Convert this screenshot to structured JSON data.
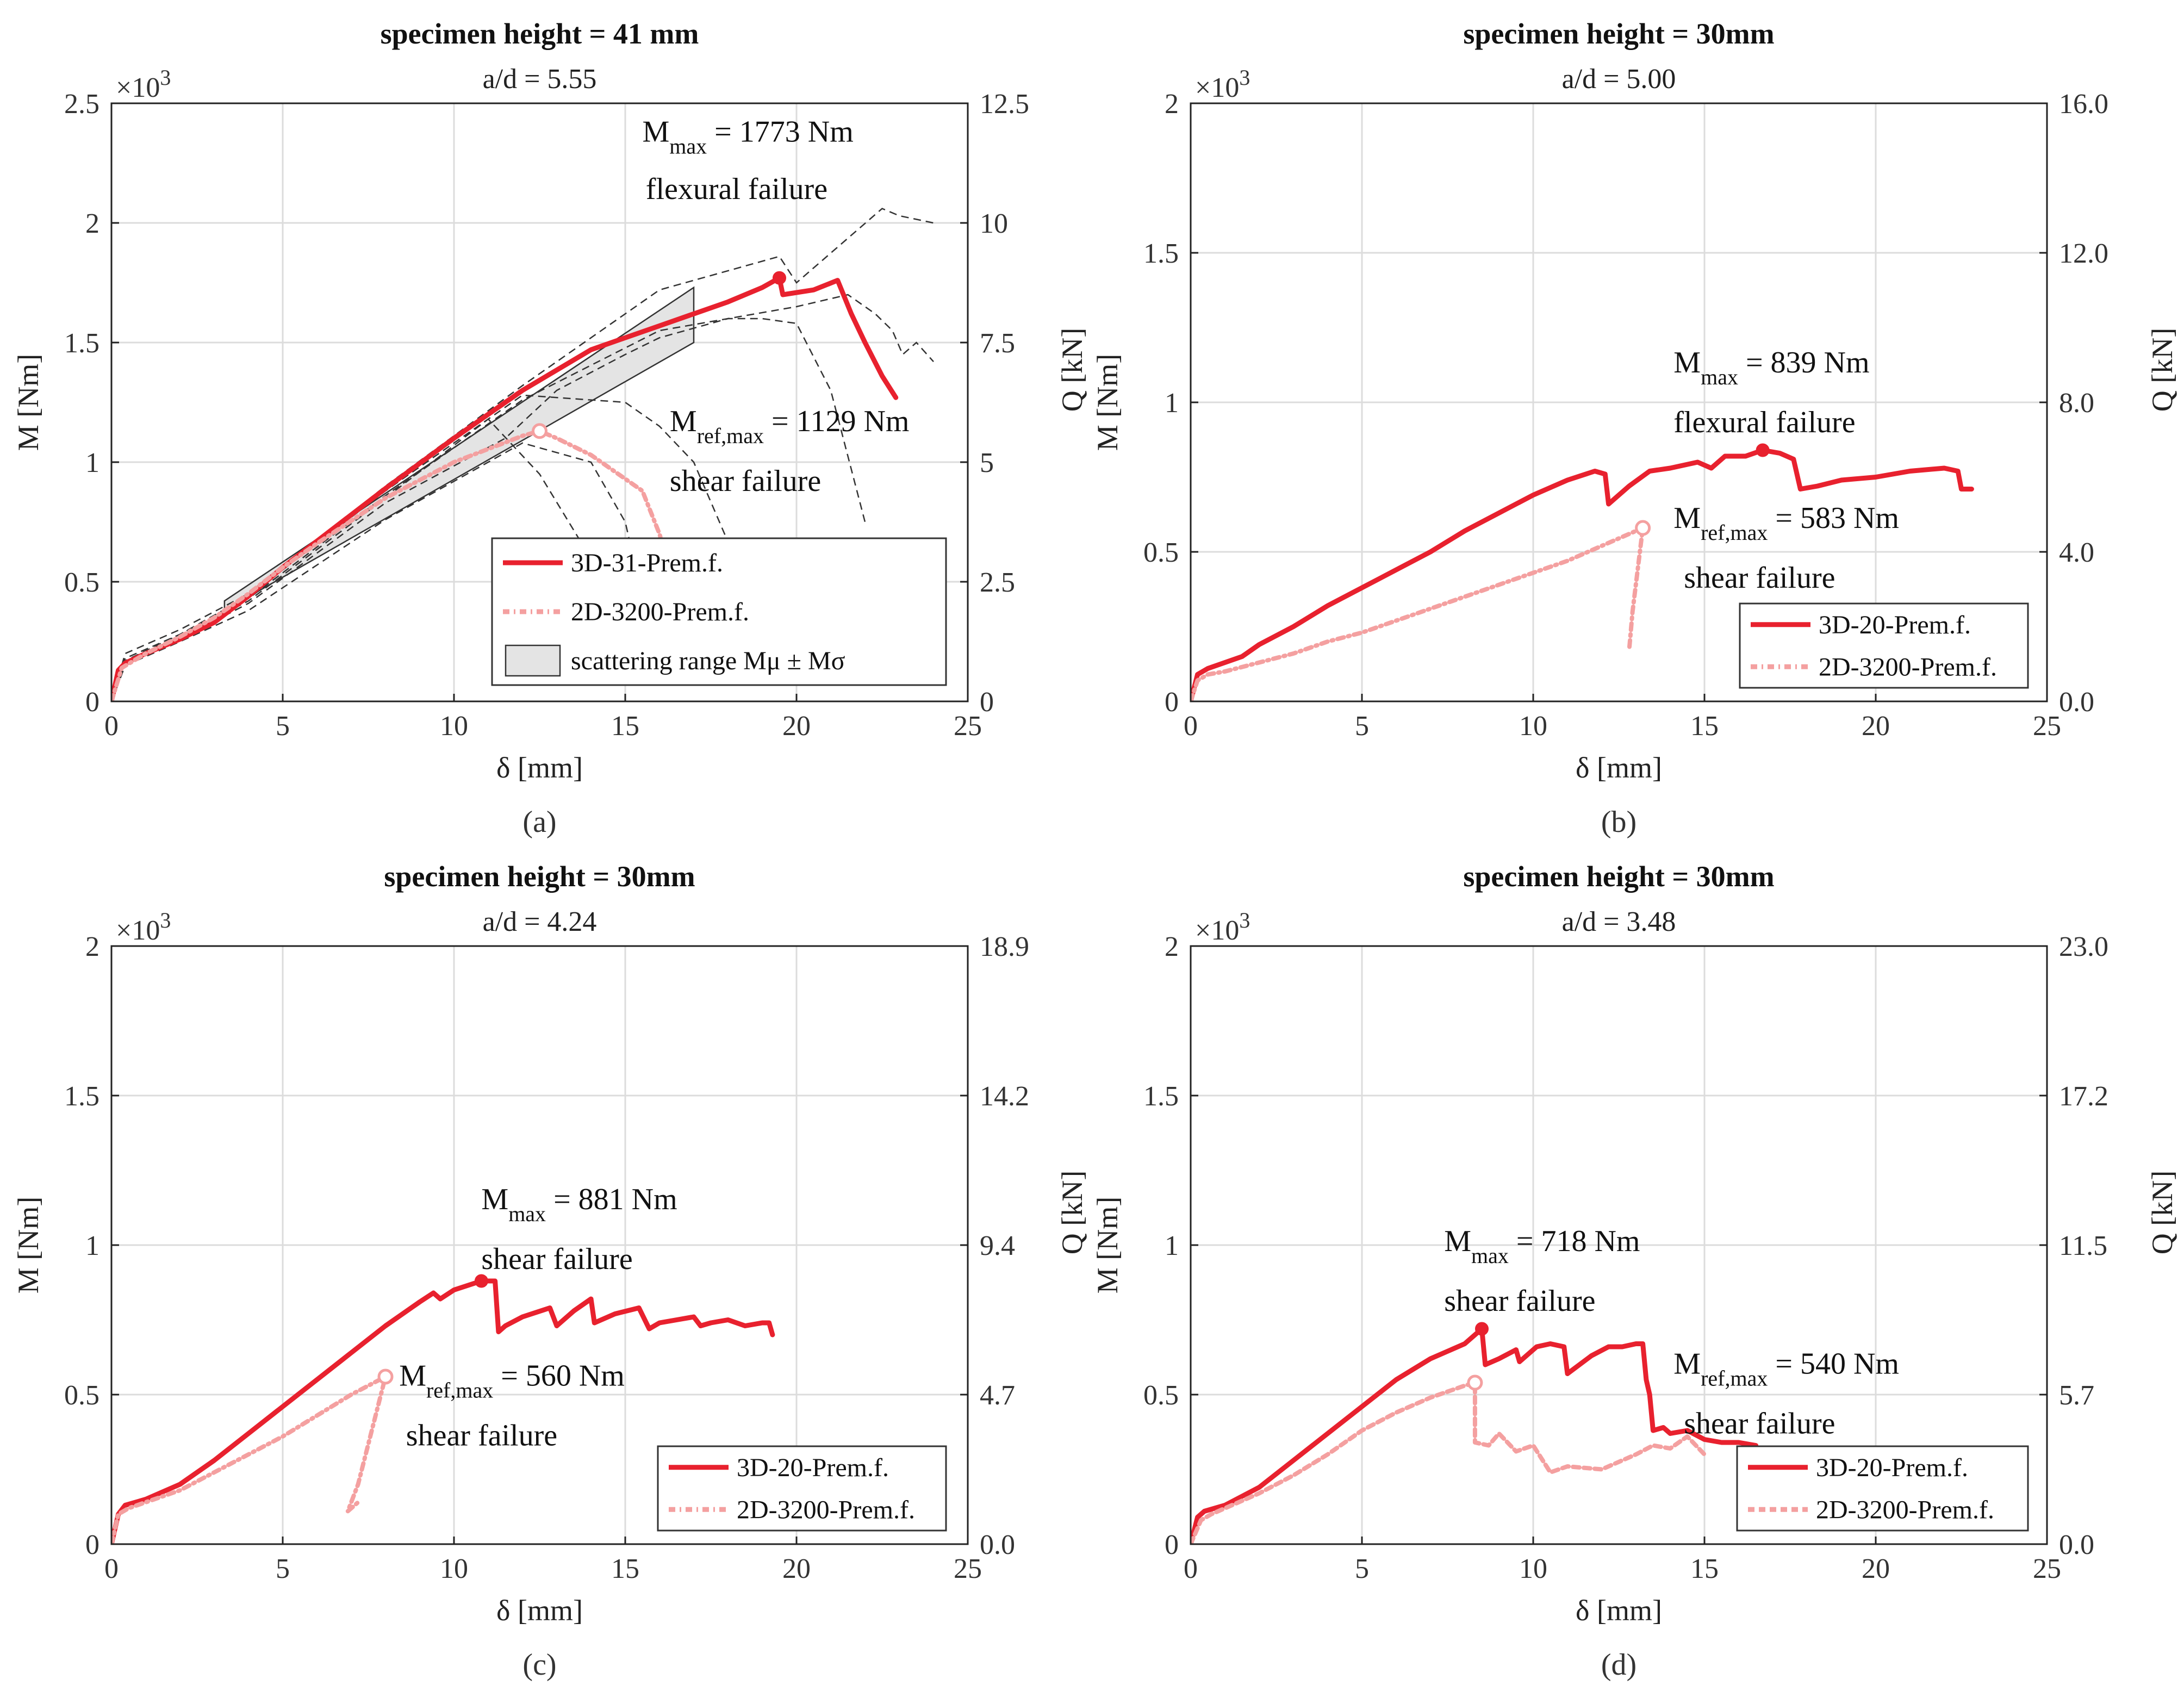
{
  "chart_data": [
    {
      "panel": "(a)",
      "type": "line",
      "title": "specimen height = 41 mm",
      "subtitle": "a/d = 5.55",
      "xlabel": "δ [mm]",
      "ylabel": "M [Nm]",
      "y2label": "",
      "multiplier": "×10",
      "multiplier_exp": "3",
      "xlim": [
        0,
        25
      ],
      "ylim": [
        0,
        2.5
      ],
      "xticks": [
        "0",
        "5",
        "10",
        "15",
        "20",
        "25"
      ],
      "yticks": [
        "0",
        "0.5",
        "1",
        "1.5",
        "2",
        "2.5"
      ],
      "y2ticks": [
        "0",
        "2.5",
        "5",
        "7.5",
        "10",
        "12.5"
      ],
      "legend_position": "bottom-right",
      "annotations": [
        {
          "main": "M",
          "sub": "max",
          "rest": " = 1773 Nm",
          "x": 15.5,
          "y": 2.34
        },
        {
          "main": "flexural failure",
          "x": 15.6,
          "y": 2.1
        },
        {
          "main": "M",
          "sub": "ref,max",
          "rest": " = 1129 Nm",
          "x": 16.3,
          "y": 1.13
        },
        {
          "main": "shear failure",
          "x": 16.3,
          "y": 0.88
        }
      ],
      "series": [
        {
          "name": "3D-31-Prem.f.",
          "color": "#e8212e",
          "dash": "solid",
          "x": [
            0,
            0.2,
            0.4,
            1,
            2,
            3,
            4,
            5,
            6,
            8,
            10,
            12,
            14,
            16,
            17,
            18,
            19,
            19.5,
            19.6,
            20.5,
            21.2,
            21.6,
            22,
            22.5,
            22.9
          ],
          "y": [
            0,
            0.13,
            0.16,
            0.2,
            0.26,
            0.33,
            0.44,
            0.56,
            0.67,
            0.89,
            1.1,
            1.3,
            1.47,
            1.57,
            1.62,
            1.67,
            1.73,
            1.77,
            1.7,
            1.72,
            1.76,
            1.62,
            1.5,
            1.36,
            1.27
          ]
        },
        {
          "name": "2D-3200-Prem.f.",
          "color": "#f4a0a0",
          "dash": "12,8,3,8",
          "x": [
            0,
            0.3,
            1,
            2,
            3,
            4,
            5,
            6,
            8,
            10,
            12,
            12.5,
            13,
            14,
            15,
            15.5,
            16,
            16.6
          ],
          "y": [
            0,
            0.14,
            0.2,
            0.27,
            0.35,
            0.45,
            0.56,
            0.66,
            0.85,
            1.0,
            1.11,
            1.13,
            1.1,
            1.03,
            0.93,
            0.88,
            0.7,
            0.4
          ]
        },
        {
          "name": "scattering range M_μ ± M_σ",
          "color": "#e4e4e4",
          "dash": "fill",
          "x": [
            3.3,
            17
          ],
          "y_upper": [
            0.42,
            1.73
          ],
          "y_lower": [
            0.38,
            1.5
          ]
        }
      ],
      "reference_curves": [
        {
          "x": [
            0,
            0.4,
            2,
            4,
            8,
            12,
            16,
            19.5,
            20,
            22.5,
            23,
            24
          ],
          "y": [
            0,
            0.2,
            0.3,
            0.45,
            0.9,
            1.32,
            1.72,
            1.86,
            1.75,
            2.06,
            2.03,
            2.0
          ]
        },
        {
          "x": [
            0,
            0.4,
            2,
            4,
            8,
            12,
            16,
            20,
            21.5,
            22.3,
            22.8,
            23.1,
            23.5,
            24
          ],
          "y": [
            0,
            0.18,
            0.28,
            0.43,
            0.86,
            1.26,
            1.55,
            1.65,
            1.7,
            1.62,
            1.55,
            1.45,
            1.5,
            1.42
          ]
        },
        {
          "x": [
            0,
            0.4,
            2,
            4,
            8,
            11.5,
            13,
            15,
            16,
            18,
            19,
            20,
            21,
            22
          ],
          "y": [
            0,
            0.16,
            0.26,
            0.41,
            0.83,
            1.1,
            1.3,
            1.45,
            1.52,
            1.6,
            1.6,
            1.58,
            1.3,
            0.75
          ]
        },
        {
          "x": [
            0,
            0.4,
            2,
            4,
            8,
            12,
            14,
            15,
            15.4
          ],
          "y": [
            0,
            0.15,
            0.25,
            0.38,
            0.76,
            1.08,
            1.0,
            0.75,
            0.5
          ]
        },
        {
          "x": [
            0,
            0.4,
            2,
            4,
            8,
            11,
            12.5,
            14.2,
            15.3
          ],
          "y": [
            0,
            0.16,
            0.27,
            0.42,
            0.85,
            1.18,
            0.95,
            0.55,
            0.4
          ]
        },
        {
          "x": [
            0,
            0.4,
            2,
            4,
            8,
            12,
            15,
            16,
            17,
            18.5
          ],
          "y": [
            0,
            0.17,
            0.28,
            0.44,
            0.88,
            1.28,
            1.25,
            1.15,
            1.0,
            0.5
          ]
        }
      ]
    },
    {
      "panel": "(b)",
      "type": "line",
      "title": "specimen height = 30mm",
      "subtitle": "a/d = 5.00",
      "xlabel": "δ [mm]",
      "ylabel": "M [Nm]",
      "y2label": "Q [kN]",
      "multiplier": "×10",
      "multiplier_exp": "3",
      "xlim": [
        0,
        25
      ],
      "ylim": [
        0,
        2
      ],
      "xticks": [
        "0",
        "5",
        "10",
        "15",
        "20",
        "25"
      ],
      "yticks": [
        "0",
        "0.5",
        "1",
        "1.5",
        "2"
      ],
      "y2ticks": [
        "0.0",
        "4.0",
        "8.0",
        "12.0",
        "16.0"
      ],
      "legend_position": "bottom-right",
      "annotations": [
        {
          "main": "M",
          "sub": "max",
          "rest": " = 839 Nm",
          "x": 14.1,
          "y": 1.1
        },
        {
          "main": "flexural failure",
          "x": 14.1,
          "y": 0.9
        },
        {
          "main": "M",
          "sub": "ref,max",
          "rest": " = 583 Nm",
          "x": 14.1,
          "y": 0.58
        },
        {
          "main": "shear failure",
          "x": 14.4,
          "y": 0.38
        }
      ],
      "series": [
        {
          "name": "3D-20-Prem.f.",
          "color": "#e8212e",
          "dash": "solid",
          "x": [
            0,
            0.2,
            0.5,
            1,
            1.5,
            2,
            3,
            4,
            5,
            6,
            7,
            8,
            9,
            10,
            11,
            11.8,
            12.1,
            12.2,
            12.8,
            13.4,
            14,
            14.8,
            15.2,
            15.6,
            16.2,
            16.7,
            17.2,
            17.6,
            17.8,
            18.3,
            19,
            20,
            21,
            22,
            22.4,
            22.5,
            22.8
          ],
          "y": [
            0,
            0.09,
            0.11,
            0.13,
            0.15,
            0.19,
            0.25,
            0.32,
            0.38,
            0.44,
            0.5,
            0.57,
            0.63,
            0.69,
            0.74,
            0.77,
            0.76,
            0.66,
            0.72,
            0.77,
            0.78,
            0.8,
            0.78,
            0.82,
            0.82,
            0.84,
            0.83,
            0.81,
            0.71,
            0.72,
            0.74,
            0.75,
            0.77,
            0.78,
            0.77,
            0.71,
            0.71
          ]
        },
        {
          "name": "2D-3200-Prem.f.",
          "color": "#f4a0a0",
          "dash": "12,8,3,8",
          "x": [
            0,
            0.2,
            0.5,
            1,
            2,
            3,
            4,
            5,
            6,
            7,
            8,
            9,
            10,
            11,
            12,
            13.2,
            12.9,
            12.8
          ],
          "y": [
            0,
            0.07,
            0.09,
            0.1,
            0.13,
            0.16,
            0.2,
            0.23,
            0.27,
            0.31,
            0.35,
            0.39,
            0.43,
            0.47,
            0.52,
            0.58,
            0.3,
            0.17
          ]
        }
      ]
    },
    {
      "panel": "(c)",
      "type": "line",
      "title": "specimen height = 30mm",
      "subtitle": "a/d = 4.24",
      "xlabel": "δ [mm]",
      "ylabel": "M [Nm]",
      "y2label": "",
      "multiplier": "×10",
      "multiplier_exp": "3",
      "xlim": [
        0,
        25
      ],
      "ylim": [
        0,
        2
      ],
      "xticks": [
        "0",
        "5",
        "10",
        "15",
        "20",
        "25"
      ],
      "yticks": [
        "0",
        "0.5",
        "1",
        "1.5",
        "2"
      ],
      "y2ticks": [
        "0.0",
        "4.7",
        "9.4",
        "14.2",
        "18.9"
      ],
      "legend_position": "bottom-right",
      "annotations": [
        {
          "main": "M",
          "sub": "max",
          "rest": " = 881 Nm",
          "x": 10.8,
          "y": 1.12
        },
        {
          "main": "shear failure",
          "x": 10.8,
          "y": 0.92
        },
        {
          "main": "M",
          "sub": "ref,max",
          "rest": " = 560 Nm",
          "x": 8.4,
          "y": 0.53
        },
        {
          "main": "shear failure",
          "x": 8.6,
          "y": 0.33
        }
      ],
      "series": [
        {
          "name": "3D-20-Prem.f.",
          "color": "#e8212e",
          "dash": "solid",
          "x": [
            0,
            0.2,
            0.4,
            1,
            2,
            3,
            4,
            5,
            6,
            7,
            8,
            9,
            9.4,
            9.6,
            10,
            10.8,
            11.2,
            11.3,
            11.5,
            12,
            12.8,
            13,
            13.5,
            14,
            14.1,
            14.7,
            15.4,
            15.7,
            16,
            16.5,
            17,
            17.2,
            17.5,
            18,
            18.5,
            19,
            19.2,
            19.3
          ],
          "y": [
            0,
            0.1,
            0.13,
            0.15,
            0.2,
            0.28,
            0.37,
            0.46,
            0.55,
            0.64,
            0.73,
            0.81,
            0.84,
            0.82,
            0.85,
            0.88,
            0.88,
            0.71,
            0.73,
            0.76,
            0.79,
            0.73,
            0.78,
            0.82,
            0.74,
            0.77,
            0.79,
            0.72,
            0.74,
            0.75,
            0.76,
            0.73,
            0.74,
            0.75,
            0.73,
            0.74,
            0.74,
            0.7
          ]
        },
        {
          "name": "2D-3200-Prem.f.",
          "color": "#f4a0a0",
          "dash": "12,8,3,8",
          "x": [
            0,
            0.2,
            0.5,
            1,
            2,
            3,
            4,
            5,
            6,
            7,
            8,
            7.2,
            6.9,
            7.2
          ],
          "y": [
            0,
            0.1,
            0.12,
            0.14,
            0.18,
            0.24,
            0.3,
            0.36,
            0.43,
            0.5,
            0.56,
            0.2,
            0.11,
            0.14
          ]
        }
      ]
    },
    {
      "panel": "(d)",
      "type": "line",
      "title": "specimen height = 30mm",
      "subtitle": "a/d = 3.48",
      "xlabel": "δ [mm]",
      "ylabel": "M [Nm]",
      "y2label": "Q [kN]",
      "multiplier": "×10",
      "multiplier_exp": "3",
      "xlim": [
        0,
        25
      ],
      "ylim": [
        0,
        2
      ],
      "xticks": [
        "0",
        "5",
        "10",
        "15",
        "20",
        "25"
      ],
      "yticks": [
        "0",
        "0.5",
        "1",
        "1.5",
        "2"
      ],
      "y2ticks": [
        "0.0",
        "5.7",
        "11.5",
        "17.2",
        "23.0"
      ],
      "legend_position": "bottom-right",
      "annotations": [
        {
          "main": "M",
          "sub": "max",
          "rest": " = 718 Nm",
          "x": 7.4,
          "y": 0.98
        },
        {
          "main": "shear failure",
          "x": 7.4,
          "y": 0.78
        },
        {
          "main": "M",
          "sub": "ref,max",
          "rest": " = 540 Nm",
          "x": 14.1,
          "y": 0.57
        },
        {
          "main": "shear failure",
          "x": 14.4,
          "y": 0.37
        }
      ],
      "series": [
        {
          "name": "3D-20-Prem.f.",
          "color": "#e8212e",
          "dash": "solid",
          "x": [
            0,
            0.2,
            0.4,
            1,
            2,
            3,
            4,
            5,
            6,
            7,
            8,
            8.4,
            8.5,
            8.6,
            9,
            9.5,
            9.6,
            10.1,
            10.5,
            10.9,
            11,
            11.7,
            12.2,
            12.6,
            13,
            13.2,
            13.3,
            13.4,
            13.5,
            13.8,
            14,
            14.5,
            15,
            15.5,
            16,
            16.5
          ],
          "y": [
            0,
            0.09,
            0.11,
            0.13,
            0.19,
            0.28,
            0.37,
            0.46,
            0.55,
            0.62,
            0.67,
            0.71,
            0.72,
            0.6,
            0.62,
            0.65,
            0.61,
            0.66,
            0.67,
            0.66,
            0.57,
            0.63,
            0.66,
            0.66,
            0.67,
            0.67,
            0.55,
            0.5,
            0.38,
            0.39,
            0.37,
            0.38,
            0.35,
            0.34,
            0.34,
            0.33
          ]
        },
        {
          "name": "2D-3200-Prem.f.",
          "color": "#f4a0a0",
          "dash": "12,8",
          "x": [
            0,
            0.3,
            0.6,
            1,
            2,
            3,
            4,
            5,
            6,
            7,
            8,
            8.3,
            8.3,
            8.7,
            9,
            9.5,
            10,
            10.5,
            11,
            12,
            13,
            13.5,
            14,
            14.5,
            15
          ],
          "y": [
            0,
            0.08,
            0.1,
            0.12,
            0.17,
            0.23,
            0.3,
            0.38,
            0.44,
            0.49,
            0.53,
            0.54,
            0.34,
            0.33,
            0.37,
            0.31,
            0.33,
            0.24,
            0.26,
            0.25,
            0.3,
            0.33,
            0.32,
            0.36,
            0.3
          ]
        }
      ]
    }
  ]
}
